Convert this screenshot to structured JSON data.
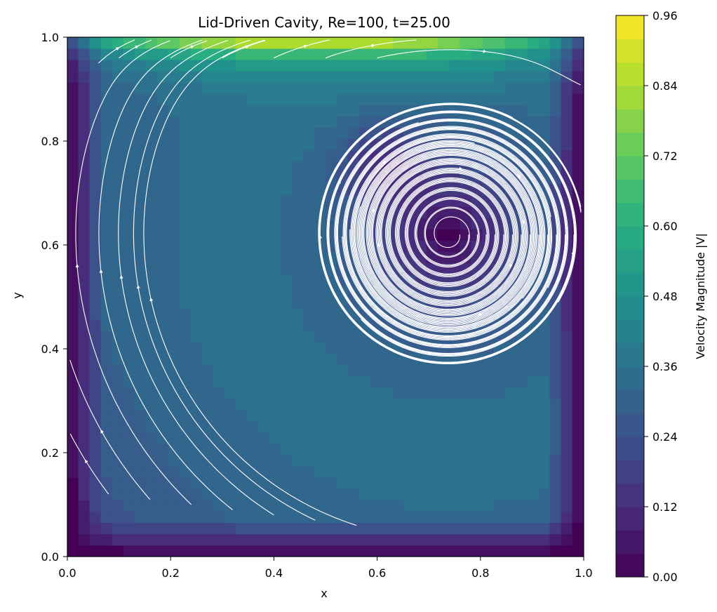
{
  "chart_data": {
    "type": "heatmap",
    "title": "Lid-Driven Cavity, Re=100, t=25.00",
    "xlabel": "x",
    "ylabel": "y",
    "xlim": [
      0.0,
      1.0
    ],
    "ylim": [
      0.0,
      1.0
    ],
    "x_ticks": [
      "0.0",
      "0.2",
      "0.4",
      "0.6",
      "0.8",
      "1.0"
    ],
    "y_ticks": [
      "0.0",
      "0.2",
      "0.4",
      "0.6",
      "0.8",
      "1.0"
    ],
    "grid": false,
    "colorbar": {
      "label": "Velocity Magnitude |V|",
      "range": [
        0.0,
        0.96
      ],
      "levels": 24,
      "colormap": "viridis",
      "ticks": [
        "0.00",
        "0.12",
        "0.24",
        "0.36",
        "0.48",
        "0.60",
        "0.72",
        "0.84",
        "0.96"
      ]
    },
    "overlay": "streamlines",
    "streamline_color": "#ffffff",
    "primary_vortex_center": [
      0.74,
      0.62
    ],
    "lid_velocity": 1.0,
    "corner_eddy_top_left": [
      0.06,
      0.95
    ],
    "min_speed_region": [
      0.61,
      0.74
    ]
  }
}
